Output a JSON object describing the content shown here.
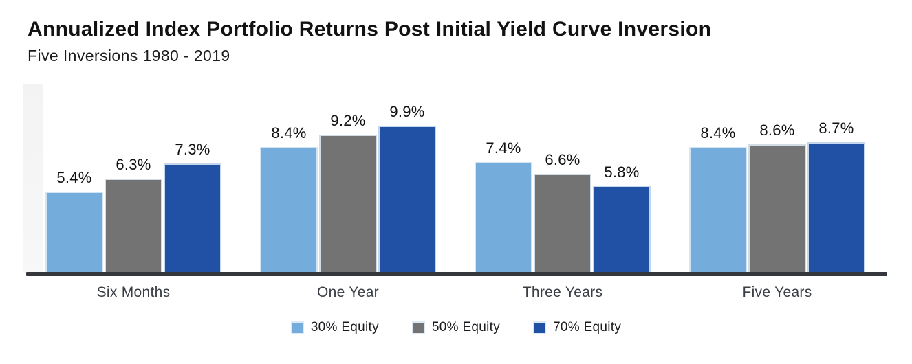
{
  "page": {
    "background": "#ffffff"
  },
  "chart_data": {
    "type": "bar",
    "title": "Annualized Index Portfolio Returns Post Initial Yield Curve Inversion",
    "subtitle": "Five Inversions 1980 - 2019",
    "categories": [
      "Six Months",
      "One Year",
      "Three Years",
      "Five Years"
    ],
    "series": [
      {
        "name": "30% Equity",
        "color": "#74ADDC",
        "values": [
          5.4,
          8.4,
          7.4,
          8.4
        ]
      },
      {
        "name": "50% Equity",
        "color": "#737373",
        "values": [
          6.3,
          9.2,
          6.6,
          8.6
        ]
      },
      {
        "name": "70% Equity",
        "color": "#2151A5",
        "values": [
          7.3,
          9.9,
          5.8,
          8.7
        ]
      }
    ],
    "value_suffix": "%",
    "value_decimals": 1,
    "ylim": [
      0,
      11.33
    ],
    "grid": false,
    "legend_position": "bottom",
    "axis_color": "#34383C",
    "value_label_color": "#121212",
    "category_color": "#3A3F45"
  }
}
